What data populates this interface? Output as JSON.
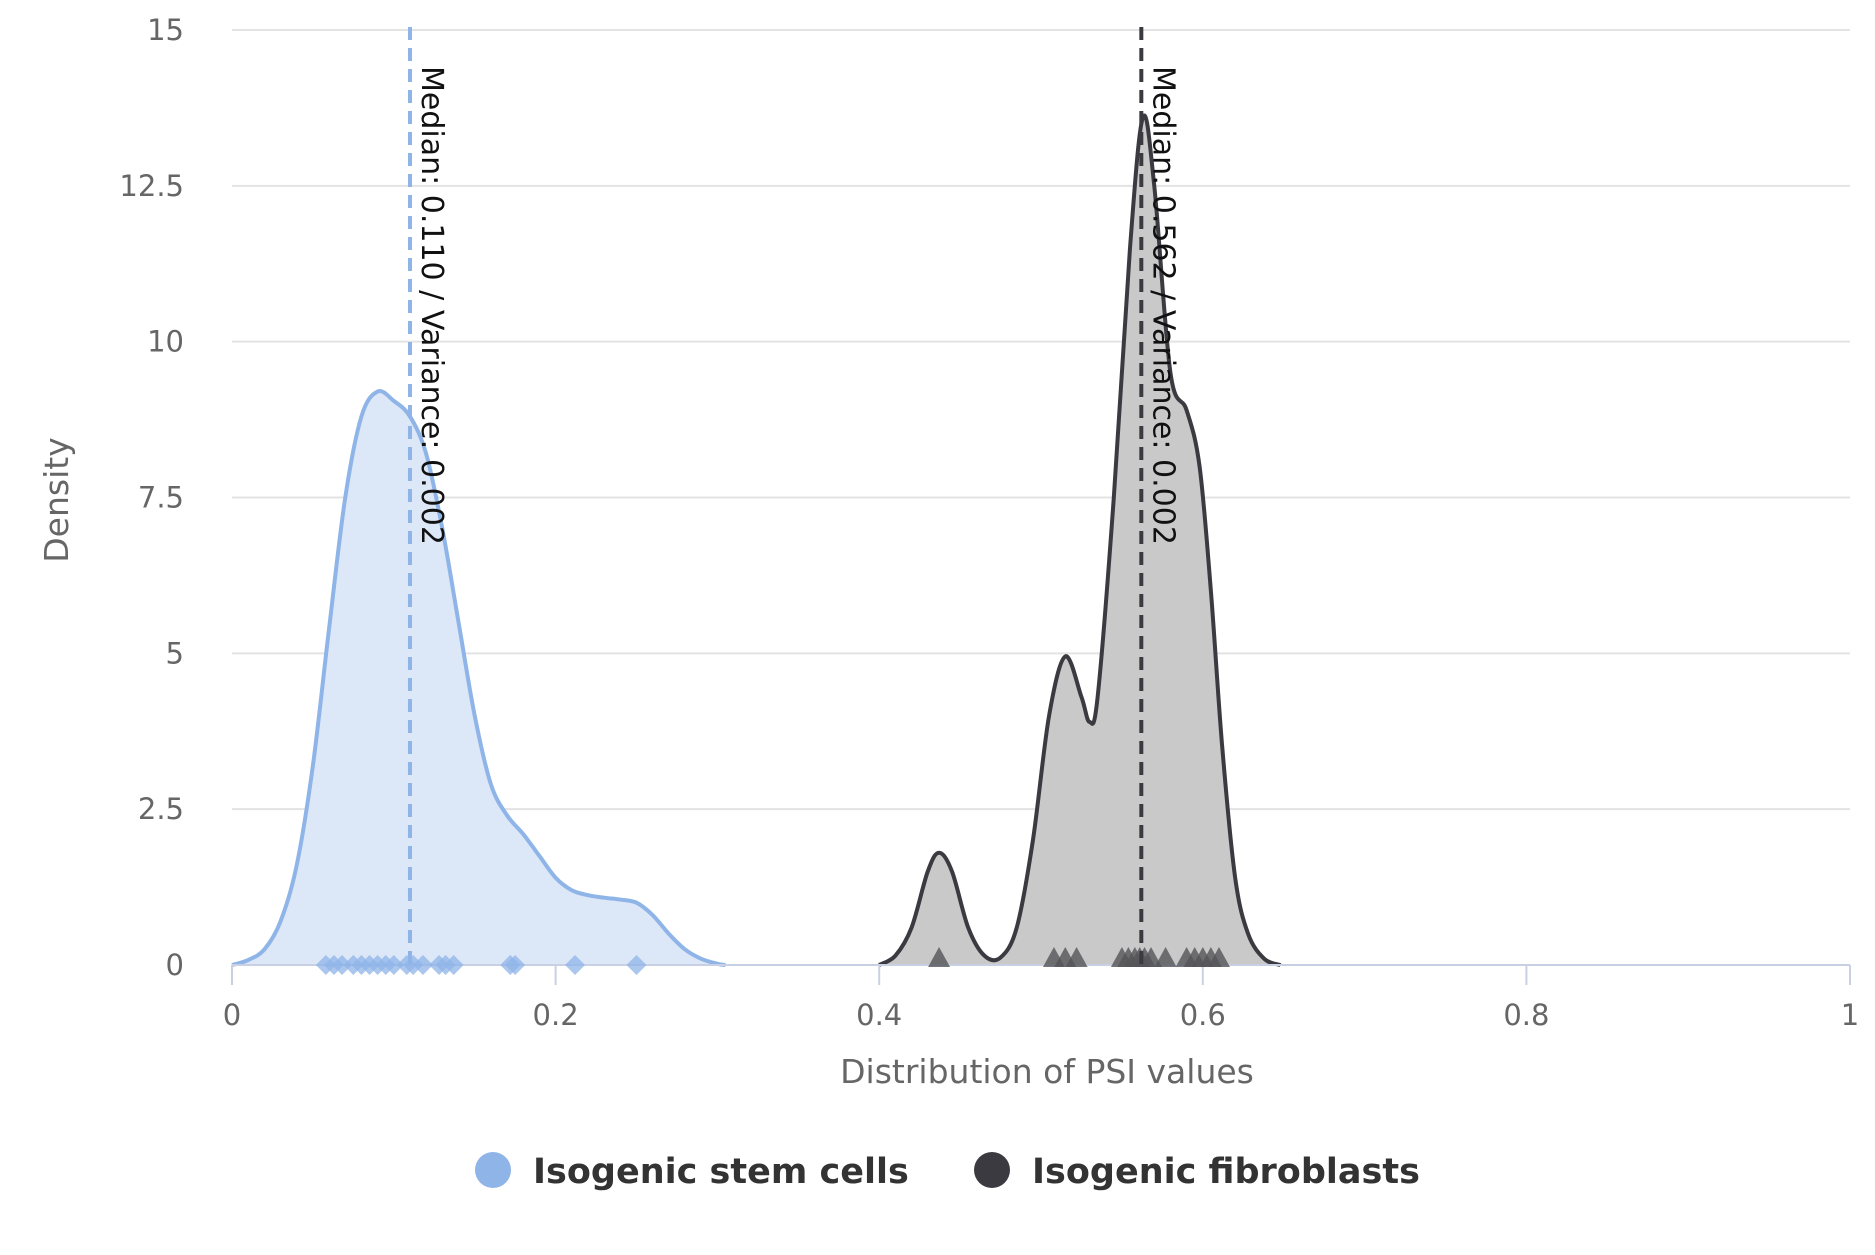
{
  "chart_data": {
    "type": "area",
    "title": "",
    "xlabel": "Distribution of PSI values",
    "ylabel": "Density",
    "xlim": [
      0,
      1
    ],
    "ylim": [
      0,
      15
    ],
    "x_ticks": [
      {
        "value": 0,
        "label": "0"
      },
      {
        "value": 0.2,
        "label": "0.2"
      },
      {
        "value": 0.4,
        "label": "0.4"
      },
      {
        "value": 0.6,
        "label": "0.6"
      },
      {
        "value": 0.8,
        "label": "0.8"
      },
      {
        "value": 1,
        "label": "1"
      }
    ],
    "y_ticks": [
      {
        "value": 0,
        "label": "0"
      },
      {
        "value": 2.5,
        "label": "2.5"
      },
      {
        "value": 5,
        "label": "5"
      },
      {
        "value": 7.5,
        "label": "7.5"
      },
      {
        "value": 10,
        "label": "10"
      },
      {
        "value": 12.5,
        "label": "12.5"
      },
      {
        "value": 15,
        "label": "15"
      }
    ],
    "grid": "horizontal",
    "legend_position": "bottom-center",
    "series": [
      {
        "name": "Isogenic stem cells",
        "color": "#8fb4e8",
        "fill": "#dce7f7",
        "marker": "diamond",
        "density": [
          [
            0.0,
            0.0
          ],
          [
            0.01,
            0.08
          ],
          [
            0.02,
            0.25
          ],
          [
            0.03,
            0.7
          ],
          [
            0.04,
            1.6
          ],
          [
            0.05,
            3.2
          ],
          [
            0.06,
            5.4
          ],
          [
            0.07,
            7.5
          ],
          [
            0.08,
            8.8
          ],
          [
            0.09,
            9.2
          ],
          [
            0.1,
            9.05
          ],
          [
            0.11,
            8.8
          ],
          [
            0.12,
            8.2
          ],
          [
            0.13,
            7.0
          ],
          [
            0.14,
            5.5
          ],
          [
            0.15,
            4.0
          ],
          [
            0.16,
            2.9
          ],
          [
            0.17,
            2.4
          ],
          [
            0.18,
            2.1
          ],
          [
            0.19,
            1.75
          ],
          [
            0.2,
            1.4
          ],
          [
            0.21,
            1.2
          ],
          [
            0.22,
            1.12
          ],
          [
            0.23,
            1.08
          ],
          [
            0.24,
            1.05
          ],
          [
            0.25,
            1.0
          ],
          [
            0.26,
            0.8
          ],
          [
            0.27,
            0.5
          ],
          [
            0.28,
            0.25
          ],
          [
            0.29,
            0.1
          ],
          [
            0.3,
            0.02
          ],
          [
            0.305,
            0.0
          ]
        ],
        "points": [
          0.058,
          0.063,
          0.068,
          0.075,
          0.08,
          0.085,
          0.09,
          0.095,
          0.1,
          0.108,
          0.112,
          0.118,
          0.128,
          0.132,
          0.137,
          0.172,
          0.175,
          0.212,
          0.25
        ],
        "median_label": "Median: 0.110 / Variance: 0.002",
        "median_value": 0.11
      },
      {
        "name": "Isogenic fibroblasts",
        "color": "#3a3a40",
        "fill": "#c9c9c9",
        "marker": "triangle",
        "density": [
          [
            0.4,
            0.0
          ],
          [
            0.41,
            0.15
          ],
          [
            0.42,
            0.6
          ],
          [
            0.43,
            1.5
          ],
          [
            0.437,
            1.8
          ],
          [
            0.445,
            1.5
          ],
          [
            0.455,
            0.6
          ],
          [
            0.465,
            0.15
          ],
          [
            0.475,
            0.12
          ],
          [
            0.485,
            0.6
          ],
          [
            0.495,
            2.0
          ],
          [
            0.505,
            4.0
          ],
          [
            0.515,
            4.95
          ],
          [
            0.525,
            4.3
          ],
          [
            0.53,
            3.9
          ],
          [
            0.535,
            4.3
          ],
          [
            0.545,
            7.5
          ],
          [
            0.555,
            11.5
          ],
          [
            0.563,
            13.6
          ],
          [
            0.57,
            12.5
          ],
          [
            0.58,
            9.5
          ],
          [
            0.59,
            8.9
          ],
          [
            0.598,
            8.0
          ],
          [
            0.605,
            6.0
          ],
          [
            0.612,
            3.5
          ],
          [
            0.62,
            1.4
          ],
          [
            0.628,
            0.5
          ],
          [
            0.638,
            0.1
          ],
          [
            0.648,
            0.0
          ]
        ],
        "points": [
          0.437,
          0.508,
          0.515,
          0.522,
          0.55,
          0.554,
          0.558,
          0.561,
          0.564,
          0.568,
          0.577,
          0.59,
          0.595,
          0.6,
          0.605,
          0.61
        ],
        "median_label": "Median: 0.562 / Variance: 0.002",
        "median_value": 0.562
      }
    ]
  }
}
